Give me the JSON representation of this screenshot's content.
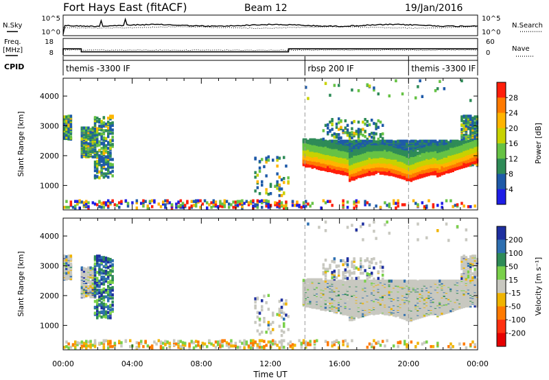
{
  "header": {
    "station": "Fort Hays East (fitACF)",
    "beam": "Beam 12",
    "date": "19/Jan/2016"
  },
  "top_panels": {
    "nsky_label": "N.Sky",
    "nsearch_label": "N.Search",
    "noise_ticks_left": [
      "10^5",
      "10^0"
    ],
    "noise_ticks_right": [
      "10^5",
      "10^0"
    ],
    "freq_label_1": "Freq.",
    "freq_label_2": "[MHz]",
    "freq_ticks": [
      "18",
      "8"
    ],
    "nave_label": "Nave",
    "nave_ticks": [
      "60",
      "0"
    ],
    "cpid_label": "CPID",
    "cpid_segments": [
      {
        "label": "themis -3300 IF",
        "start_h": 0
      },
      {
        "label": "rbsp 200 IF",
        "start_h": 14
      },
      {
        "label": "themis -3300 IF",
        "start_h": 20
      }
    ]
  },
  "chart_data": [
    {
      "type": "heatmap",
      "name": "power",
      "ylabel": "Slant Range [km]",
      "yticks": [
        1000,
        2000,
        3000,
        4000
      ],
      "ylim": [
        180,
        4600
      ],
      "colorbar_label": "Power [dB]",
      "colorbar_ticks": [
        "28",
        "24",
        "20",
        "16",
        "12",
        "8",
        "4"
      ],
      "colors": [
        "#ff1e0a",
        "#ff7a00",
        "#ffb400",
        "#c8d200",
        "#66c244",
        "#2e8b57",
        "#1e5aa8",
        "#1e1ee6"
      ]
    },
    {
      "type": "heatmap",
      "name": "velocity",
      "ylabel": "Slant Range [km]",
      "yticks": [
        1000,
        2000,
        3000,
        4000
      ],
      "ylim": [
        180,
        4600
      ],
      "colorbar_label": "Velocity [m s⁻¹]",
      "colorbar_ticks": [
        "200",
        "100",
        "50",
        "15",
        "-15",
        "-50",
        "-100",
        "-200"
      ],
      "colors": [
        "#1e2fa0",
        "#2e6fb0",
        "#2e8b57",
        "#7ad04a",
        "#c8c8c0",
        "#f0b400",
        "#ff7a00",
        "#ff3010",
        "#e60000"
      ]
    }
  ],
  "xaxis": {
    "label": "Time UT",
    "ticks": [
      "00:00",
      "04:00",
      "08:00",
      "12:00",
      "16:00",
      "20:00",
      "00:00"
    ]
  }
}
